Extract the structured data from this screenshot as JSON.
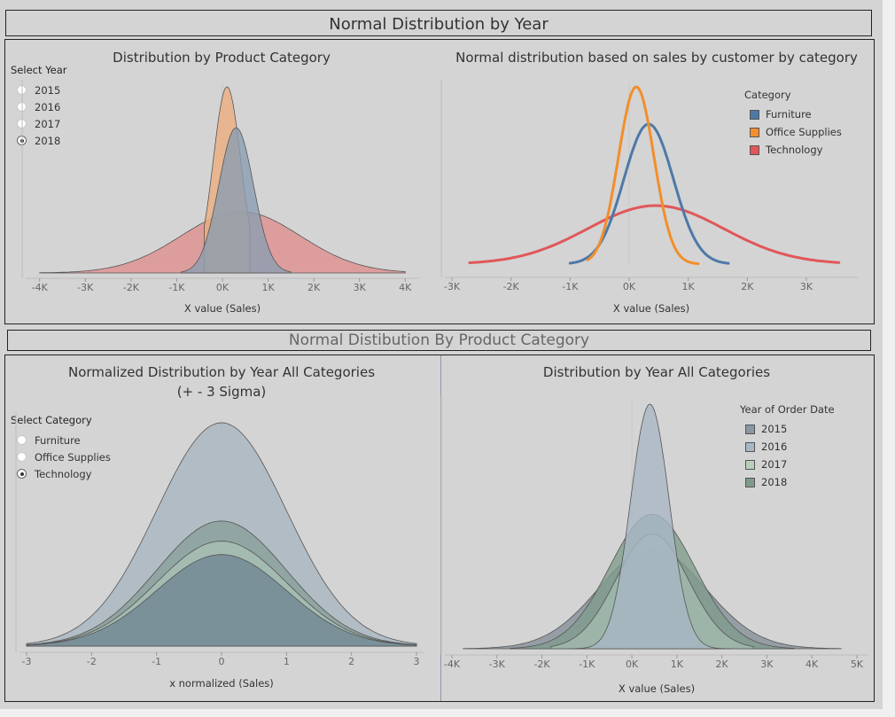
{
  "dashboard": {
    "top_banner": "Normal Distribution by Year",
    "bottom_banner": "Normal Distibution By Product Category"
  },
  "filters": {
    "year": {
      "label": "Select Year",
      "options": [
        "2015",
        "2016",
        "2017",
        "2018"
      ],
      "selected": "2018"
    },
    "category": {
      "label": "Select Category",
      "options": [
        "Furniture",
        "Office Supplies",
        "Technology"
      ],
      "selected": "Technology"
    }
  },
  "legends": {
    "category": {
      "title": "Category",
      "items": [
        {
          "label": "Furniture",
          "color": "#4e79a7"
        },
        {
          "label": "Office Supplies",
          "color": "#f28e2b"
        },
        {
          "label": "Technology",
          "color": "#e15759"
        }
      ]
    },
    "year": {
      "title": "Year of Order Date",
      "items": [
        {
          "label": "2015",
          "color": "#8b96a3"
        },
        {
          "label": "2016",
          "color": "#a8b7c4"
        },
        {
          "label": "2017",
          "color": "#b8d0b7"
        },
        {
          "label": "2018",
          "color": "#7e9a88"
        }
      ]
    }
  },
  "chart_data": [
    {
      "id": "c1",
      "type": "area",
      "title": "Distribution by Product Category",
      "xlabel": "X value (Sales)",
      "xticks": [
        "-4K",
        "-3K",
        "-2K",
        "-1K",
        "0K",
        "1K",
        "2K",
        "3K",
        "4K"
      ],
      "xtick_values": [
        -4000,
        -3000,
        -2000,
        -1000,
        0,
        1000,
        2000,
        3000,
        4000
      ],
      "xlim": [
        -4150,
        4150
      ],
      "ylim": [
        0,
        1.0
      ],
      "series": [
        {
          "name": "Technology",
          "mean": 400,
          "sd": 1300,
          "peak": 0.33,
          "from": -4000,
          "to": 4000,
          "color": "#e08e8f"
        },
        {
          "name": "Office Supplies",
          "mean": 100,
          "sd": 300,
          "peak": 1.0,
          "from": -400,
          "to": 600,
          "color": "#ebae7e"
        },
        {
          "name": "Furniture",
          "mean": 300,
          "sd": 380,
          "peak": 0.78,
          "from": -900,
          "to": 1500,
          "color": "#8b9db2"
        }
      ]
    },
    {
      "id": "c2",
      "type": "line",
      "title": "Normal distribution based on sales by customer by category",
      "xlabel": "X value (Sales)",
      "xticks": [
        "-3K",
        "-2K",
        "-1K",
        "0K",
        "1K",
        "2K",
        "3K"
      ],
      "xtick_values": [
        -3000,
        -2000,
        -1000,
        0,
        1000,
        2000,
        3000
      ],
      "xlim": [
        -3000,
        3750
      ],
      "ylim": [
        0,
        1.0
      ],
      "series": [
        {
          "name": "Technology",
          "mean": 450,
          "sd": 1150,
          "peak": 0.33,
          "from": -2700,
          "to": 3550,
          "color": "#e15759"
        },
        {
          "name": "Furniture",
          "mean": 330,
          "sd": 420,
          "peak": 0.79,
          "from": -1000,
          "to": 1680,
          "color": "#4e79a7"
        },
        {
          "name": "Office Supplies",
          "mean": 120,
          "sd": 300,
          "peak": 1.0,
          "from": -700,
          "to": 1170,
          "color": "#f28e2b"
        }
      ]
    },
    {
      "id": "c3",
      "type": "area",
      "title": "Normalized Distribution by Year All Categories",
      "subtitle": "(+ - 3 Sigma)",
      "xlabel": "x normalized (Sales)",
      "xticks": [
        "-3",
        "-2",
        "-1",
        "0",
        "1",
        "2",
        "3"
      ],
      "xtick_values": [
        -3,
        -2,
        -1,
        0,
        1,
        2,
        3
      ],
      "xlim": [
        -3,
        3
      ],
      "ylim": [
        0,
        1.0
      ],
      "series": [
        {
          "name": "2016",
          "mean": 0,
          "sd": 1,
          "peak": 1.0,
          "from": -3,
          "to": 3,
          "color": "#a8b5c0"
        },
        {
          "name": "2018",
          "mean": 0,
          "sd": 1,
          "peak": 0.56,
          "from": -3,
          "to": 3,
          "color": "#8a9f99"
        },
        {
          "name": "2017",
          "mean": 0,
          "sd": 1,
          "peak": 0.47,
          "from": -3,
          "to": 3,
          "color": "#a9c0b5"
        },
        {
          "name": "2015",
          "mean": 0,
          "sd": 1,
          "peak": 0.41,
          "from": -3,
          "to": 3,
          "color": "#6f8793"
        }
      ]
    },
    {
      "id": "c4",
      "type": "area",
      "title": "Distribution by Year All Categories",
      "xlabel": "X value (Sales)",
      "xticks": [
        "-4K",
        "-3K",
        "-2K",
        "-1K",
        "0K",
        "1K",
        "2K",
        "3K",
        "4K",
        "5K"
      ],
      "xtick_values": [
        -4000,
        -3000,
        -2000,
        -1000,
        0,
        1000,
        2000,
        3000,
        4000,
        5000
      ],
      "xlim": [
        -4000,
        5100
      ],
      "ylim": [
        0,
        1.0
      ],
      "series": [
        {
          "name": "2015",
          "mean": 450,
          "sd": 1180,
          "peak": 0.41,
          "from": -3750,
          "to": 4650,
          "color": "#848e98"
        },
        {
          "name": "2018",
          "mean": 450,
          "sd": 950,
          "peak": 0.55,
          "from": -2700,
          "to": 3600,
          "color": "#7f9c8c"
        },
        {
          "name": "2017",
          "mean": 450,
          "sd": 800,
          "peak": 0.47,
          "from": -1800,
          "to": 2700,
          "color": "#a2bcae"
        },
        {
          "name": "2016",
          "mean": 400,
          "sd": 430,
          "peak": 1.0,
          "from": -1400,
          "to": 2200,
          "color": "#a9b6c4"
        }
      ]
    }
  ]
}
